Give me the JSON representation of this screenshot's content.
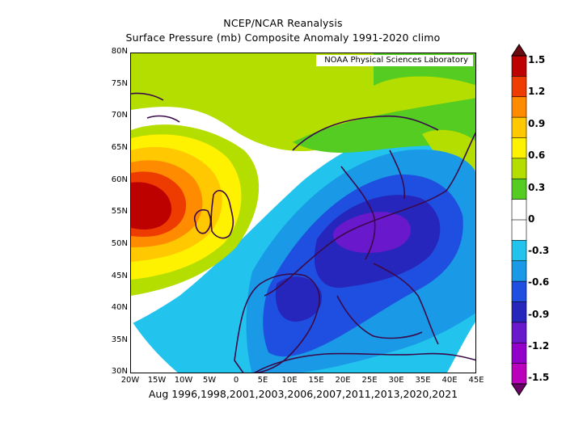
{
  "title": {
    "line1": "NCEP/NCAR Reanalysis",
    "line2": "Surface Pressure (mb) Composite Anomaly 1991-2020 climo"
  },
  "credit": "NOAA Physical Sciences Laboratory",
  "caption": "Aug 1996,1998,2001,2003,2006,2007,2011,2013,2020,2021",
  "map": {
    "variable": "Surface Pressure (mb) Composite Anomaly",
    "lat_range": [
      30,
      80
    ],
    "lon_range": [
      -20,
      45
    ],
    "lat_ticks": [
      "80N",
      "75N",
      "70N",
      "65N",
      "60N",
      "55N",
      "50N",
      "45N",
      "40N",
      "35N",
      "30N"
    ],
    "lon_ticks": [
      "20W",
      "15W",
      "10W",
      "5W",
      "0",
      "5E",
      "10E",
      "15E",
      "20E",
      "25E",
      "30E",
      "35E",
      "40E",
      "45E"
    ],
    "features": {
      "high_anomaly_center": {
        "lat": 55,
        "lon": -15,
        "value": 1.5
      },
      "low_anomaly_center": {
        "lat": 53,
        "lon": 25,
        "value": -0.9
      }
    }
  },
  "colorbar": {
    "labels": [
      "1.5",
      "1.2",
      "0.9",
      "0.6",
      "0.3",
      "0",
      "-0.3",
      "-0.6",
      "-0.9",
      "-1.2",
      "-1.5"
    ],
    "colors": [
      "#6b0a10",
      "#bd0000",
      "#ee3b00",
      "#ff8c00",
      "#ffc800",
      "#fff200",
      "#b4dd00",
      "#55cc22",
      "#ffffff",
      "#ffffff",
      "#22c4ee",
      "#1a9ae6",
      "#1f4fe0",
      "#2626bd",
      "#6a18cc",
      "#9300c9",
      "#bb00bb",
      "#6b0066"
    ]
  },
  "colors": {
    "neutral": "#ffffff",
    "positive_low": "#b4dd00",
    "negative_low": "#22c4ee"
  }
}
